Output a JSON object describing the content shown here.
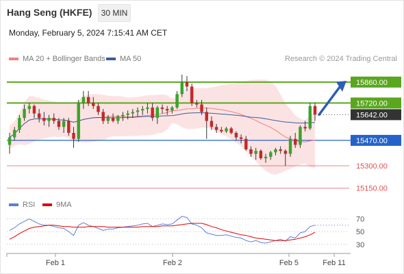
{
  "header": {
    "title": "Hang Seng (HKFE)",
    "timeframe": "30 MIN"
  },
  "date_text": "Monday, February 5, 2024 7:15:41 AM CET",
  "legend": {
    "ma20_label": "MA 20 + Bollinger Bands",
    "ma50_label": "MA 50",
    "credit": "Research © 2024 Trading Central",
    "ma20_color": "#f08080",
    "ma50_color": "#3a5c9a"
  },
  "rsi_legend": {
    "rsi_label": "RSI",
    "ma9_label": "9MA",
    "rsi_color": "#5b7fd6",
    "ma9_color": "#e00000"
  },
  "chart_data": [
    {
      "type": "candlestick",
      "ylim": [
        15080,
        15960
      ],
      "levels": [
        {
          "label": "15860.00",
          "value": 15860,
          "kind": "resistance",
          "color": "#5aa61e"
        },
        {
          "label": "15720.00",
          "value": 15720,
          "kind": "resistance",
          "color": "#5aa61e"
        },
        {
          "label": "15642.00",
          "value": 15642,
          "kind": "last",
          "color": "#333333"
        },
        {
          "label": "15470.00",
          "value": 15470,
          "kind": "pivot",
          "color": "#2563c9"
        },
        {
          "label": "15300.00",
          "value": 15300,
          "kind": "support",
          "color": "#e05050"
        },
        {
          "label": "15150.00",
          "value": 15150,
          "kind": "support",
          "color": "#e05050"
        }
      ],
      "x_ticks": [
        "Feb 1",
        "Feb 2",
        "Feb 5",
        "Feb 11"
      ],
      "candles": [
        [
          15440,
          15520,
          15380,
          15490
        ],
        [
          15490,
          15560,
          15470,
          15540
        ],
        [
          15540,
          15640,
          15520,
          15620
        ],
        [
          15620,
          15710,
          15600,
          15680
        ],
        [
          15680,
          15720,
          15650,
          15700
        ],
        [
          15700,
          15710,
          15620,
          15650
        ],
        [
          15650,
          15680,
          15590,
          15620
        ],
        [
          15620,
          15660,
          15570,
          15600
        ],
        [
          15600,
          15640,
          15560,
          15620
        ],
        [
          15620,
          15650,
          15580,
          15600
        ],
        [
          15600,
          15620,
          15540,
          15560
        ],
        [
          15560,
          15620,
          15520,
          15600
        ],
        [
          15600,
          15620,
          15500,
          15520
        ],
        [
          15520,
          15560,
          15420,
          15480
        ],
        [
          15480,
          15740,
          15460,
          15720
        ],
        [
          15720,
          15800,
          15680,
          15760
        ],
        [
          15760,
          15800,
          15700,
          15720
        ],
        [
          15720,
          15760,
          15680,
          15700
        ],
        [
          15700,
          15720,
          15640,
          15660
        ],
        [
          15660,
          15680,
          15580,
          15600
        ],
        [
          15600,
          15640,
          15580,
          15620
        ],
        [
          15620,
          15650,
          15590,
          15600
        ],
        [
          15600,
          15640,
          15580,
          15630
        ],
        [
          15630,
          15660,
          15600,
          15640
        ],
        [
          15640,
          15670,
          15610,
          15650
        ],
        [
          15650,
          15680,
          15620,
          15660
        ],
        [
          15660,
          15690,
          15630,
          15670
        ],
        [
          15670,
          15700,
          15640,
          15680
        ],
        [
          15680,
          15720,
          15650,
          15690
        ],
        [
          15690,
          15720,
          15600,
          15620
        ],
        [
          15620,
          15700,
          15580,
          15690
        ],
        [
          15690,
          15710,
          15650,
          15680
        ],
        [
          15680,
          15700,
          15640,
          15670
        ],
        [
          15670,
          15700,
          15650,
          15690
        ],
        [
          15690,
          15800,
          15680,
          15780
        ],
        [
          15780,
          15910,
          15760,
          15860
        ],
        [
          15860,
          15900,
          15800,
          15830
        ],
        [
          15830,
          15850,
          15700,
          15720
        ],
        [
          15720,
          15740,
          15690,
          15710
        ],
        [
          15710,
          15740,
          15640,
          15660
        ],
        [
          15660,
          15690,
          15480,
          15600
        ],
        [
          15600,
          15630,
          15540,
          15560
        ],
        [
          15560,
          15580,
          15520,
          15540
        ],
        [
          15540,
          15560,
          15520,
          15530
        ],
        [
          15530,
          15560,
          15520,
          15550
        ],
        [
          15550,
          15560,
          15510,
          15520
        ],
        [
          15520,
          15530,
          15470,
          15490
        ],
        [
          15490,
          15510,
          15450,
          15480
        ],
        [
          15480,
          15500,
          15400,
          15410
        ],
        [
          15410,
          15430,
          15360,
          15380
        ],
        [
          15380,
          15420,
          15340,
          15400
        ],
        [
          15400,
          15410,
          15340,
          15350
        ],
        [
          15350,
          15380,
          15320,
          15360
        ],
        [
          15360,
          15400,
          15340,
          15390
        ],
        [
          15390,
          15420,
          15370,
          15410
        ],
        [
          15410,
          15430,
          15380,
          15400
        ],
        [
          15400,
          15410,
          15300,
          15380
        ],
        [
          15380,
          15500,
          15360,
          15480
        ],
        [
          15480,
          15520,
          15420,
          15440
        ],
        [
          15440,
          15570,
          15420,
          15560
        ],
        [
          15560,
          15600,
          15530,
          15550
        ],
        [
          15550,
          15720,
          15540,
          15700
        ],
        [
          15700,
          15720,
          15600,
          15642
        ]
      ]
    },
    {
      "type": "line",
      "title": "RSI",
      "ylim": [
        18,
        78
      ],
      "y_ticks": [
        70,
        50,
        30
      ],
      "series": [
        {
          "name": "RSI",
          "values": [
            52,
            56,
            62,
            66,
            70,
            66,
            62,
            60,
            60,
            58,
            56,
            55,
            50,
            44,
            60,
            64,
            60,
            58,
            55,
            52,
            54,
            54,
            56,
            57,
            58,
            59,
            60,
            62,
            63,
            58,
            60,
            62,
            61,
            62,
            68,
            74,
            72,
            62,
            60,
            56,
            48,
            46,
            44,
            44,
            45,
            43,
            41,
            40,
            36,
            34,
            36,
            33,
            32,
            34,
            36,
            38,
            35,
            42,
            40,
            48,
            50,
            58,
            60
          ]
        },
        {
          "name": "9MA",
          "values": [
            38,
            42,
            47,
            51,
            55,
            57,
            58,
            59,
            60,
            60,
            59,
            58,
            58,
            57,
            57,
            57,
            58,
            58,
            58,
            58,
            57,
            57,
            57,
            57,
            57,
            57,
            57,
            58,
            58,
            58,
            58,
            59,
            59,
            59,
            60,
            61,
            62,
            63,
            63,
            63,
            61,
            58,
            56,
            53,
            51,
            49,
            47,
            45,
            44,
            42,
            40,
            39,
            38,
            37,
            36,
            36,
            36,
            37,
            38,
            40,
            42,
            45,
            49
          ]
        }
      ]
    }
  ]
}
